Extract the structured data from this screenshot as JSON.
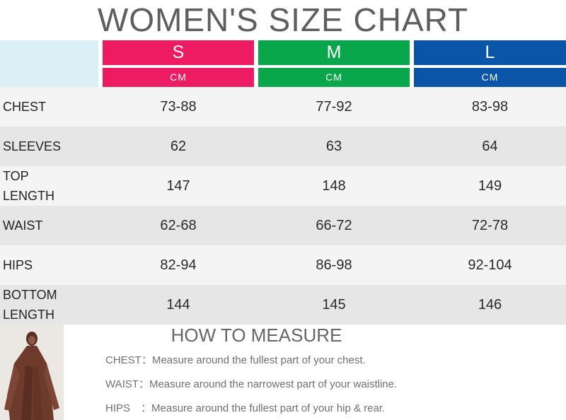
{
  "title": "WOMEN'S SIZE CHART",
  "colors": {
    "s": "#ec1b62",
    "m": "#0aa64c",
    "l": "#0b55a8",
    "header_blank": "#dbeff6"
  },
  "sizes": [
    {
      "label": "S",
      "unit": "CM"
    },
    {
      "label": "M",
      "unit": "CM"
    },
    {
      "label": "L",
      "unit": "CM"
    }
  ],
  "rows": [
    {
      "label": "CHEST",
      "values": [
        "73-88",
        "77-92",
        "83-98"
      ]
    },
    {
      "label": "SLEEVES",
      "values": [
        "62",
        "63",
        "64"
      ]
    },
    {
      "label": "TOP LENGTH",
      "values": [
        "147",
        "148",
        "149"
      ]
    },
    {
      "label": "WAIST",
      "values": [
        "62-68",
        "66-72",
        "72-78"
      ]
    },
    {
      "label": "HIPS",
      "values": [
        "82-94",
        "86-98",
        "92-104"
      ]
    },
    {
      "label": "BOTTOM LENGTH",
      "values": [
        "144",
        "145",
        "146"
      ]
    }
  ],
  "how_to_measure": {
    "title": "HOW TO MEASURE",
    "items": [
      {
        "key": "CHEST：",
        "text": "Measure around the fullest part of your chest."
      },
      {
        "key": "WAIST：",
        "text": "Measure around the narrowest part of your waistline."
      },
      {
        "key": "HIPS　：",
        "text": "Measure around the fullest part of your hip & rear."
      }
    ]
  },
  "photo": {
    "icon": "model-photo"
  }
}
